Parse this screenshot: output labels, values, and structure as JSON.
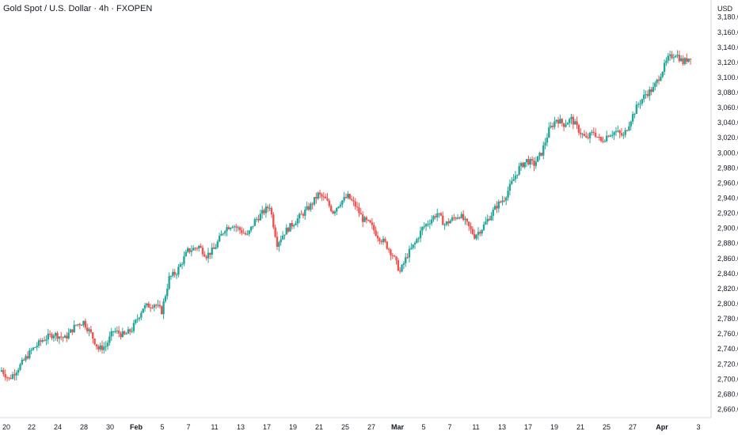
{
  "header": {
    "title": "Gold Spot / U.S. Dollar · 4h · FXOPEN"
  },
  "colors": {
    "up": "#26a69a",
    "down": "#ef5350",
    "axis_text": "#131722",
    "axis_line": "#d1d4dc"
  },
  "chart_data": {
    "type": "candlestick",
    "currency": "USD",
    "ylim": [
      2650,
      3185
    ],
    "y_ticks": [
      "2,660.00",
      "2,680.00",
      "2,700.00",
      "2,720.00",
      "2,740.00",
      "2,760.00",
      "2,780.00",
      "2,800.00",
      "2,820.00",
      "2,840.00",
      "2,860.00",
      "2,880.00",
      "2,900.00",
      "2,920.00",
      "2,940.00",
      "2,960.00",
      "2,980.00",
      "3,000.00",
      "3,020.00",
      "3,040.00",
      "3,060.00",
      "3,080.00",
      "3,100.00",
      "3,120.00",
      "3,140.00",
      "3,160.00",
      "3,180.00"
    ],
    "x_ticks": [
      {
        "label": "20",
        "bold": false
      },
      {
        "label": "22",
        "bold": false
      },
      {
        "label": "24",
        "bold": false
      },
      {
        "label": "28",
        "bold": false
      },
      {
        "label": "30",
        "bold": false
      },
      {
        "label": "Feb",
        "bold": true
      },
      {
        "label": "5",
        "bold": false
      },
      {
        "label": "7",
        "bold": false
      },
      {
        "label": "11",
        "bold": false
      },
      {
        "label": "13",
        "bold": false
      },
      {
        "label": "17",
        "bold": false
      },
      {
        "label": "19",
        "bold": false
      },
      {
        "label": "21",
        "bold": false
      },
      {
        "label": "25",
        "bold": false
      },
      {
        "label": "27",
        "bold": false
      },
      {
        "label": "Mar",
        "bold": true
      },
      {
        "label": "5",
        "bold": false
      },
      {
        "label": "7",
        "bold": false
      },
      {
        "label": "11",
        "bold": false
      },
      {
        "label": "13",
        "bold": false
      },
      {
        "label": "17",
        "bold": false
      },
      {
        "label": "19",
        "bold": false
      },
      {
        "label": "21",
        "bold": false
      },
      {
        "label": "25",
        "bold": false
      },
      {
        "label": "27",
        "bold": false
      },
      {
        "label": "Apr",
        "bold": true
      },
      {
        "label": "3",
        "bold": false
      }
    ],
    "close_path": [
      [
        0,
        2712
      ],
      [
        2,
        2700
      ],
      [
        5,
        2718
      ],
      [
        8,
        2738
      ],
      [
        11,
        2752
      ],
      [
        14,
        2760
      ],
      [
        17,
        2754
      ],
      [
        20,
        2772
      ],
      [
        22,
        2776
      ],
      [
        24,
        2760
      ],
      [
        26,
        2740
      ],
      [
        28,
        2744
      ],
      [
        30,
        2764
      ],
      [
        33,
        2758
      ],
      [
        35,
        2766
      ],
      [
        38,
        2795
      ],
      [
        41,
        2800
      ],
      [
        43,
        2790
      ],
      [
        45,
        2834
      ],
      [
        47,
        2842
      ],
      [
        50,
        2870
      ],
      [
        53,
        2876
      ],
      [
        55,
        2864
      ],
      [
        57,
        2872
      ],
      [
        60,
        2900
      ],
      [
        62,
        2905
      ],
      [
        64,
        2898
      ],
      [
        66,
        2890
      ],
      [
        68,
        2910
      ],
      [
        70,
        2920
      ],
      [
        72,
        2930
      ],
      [
        74,
        2880
      ],
      [
        76,
        2895
      ],
      [
        79,
        2910
      ],
      [
        81,
        2920
      ],
      [
        83,
        2930
      ],
      [
        85,
        2945
      ],
      [
        87,
        2938
      ],
      [
        89,
        2922
      ],
      [
        91,
        2935
      ],
      [
        93,
        2942
      ],
      [
        95,
        2930
      ],
      [
        97,
        2912
      ],
      [
        99,
        2905
      ],
      [
        101,
        2890
      ],
      [
        103,
        2880
      ],
      [
        105,
        2865
      ],
      [
        107,
        2842
      ],
      [
        109,
        2865
      ],
      [
        111,
        2880
      ],
      [
        113,
        2900
      ],
      [
        115,
        2910
      ],
      [
        117,
        2920
      ],
      [
        119,
        2905
      ],
      [
        121,
        2912
      ],
      [
        123,
        2918
      ],
      [
        125,
        2905
      ],
      [
        127,
        2890
      ],
      [
        129,
        2900
      ],
      [
        131,
        2915
      ],
      [
        133,
        2930
      ],
      [
        135,
        2940
      ],
      [
        137,
        2960
      ],
      [
        139,
        2980
      ],
      [
        141,
        2990
      ],
      [
        143,
        2985
      ],
      [
        145,
        3000
      ],
      [
        147,
        3030
      ],
      [
        149,
        3045
      ],
      [
        151,
        3038
      ],
      [
        153,
        3045
      ],
      [
        155,
        3030
      ],
      [
        157,
        3018
      ],
      [
        159,
        3028
      ],
      [
        161,
        3015
      ],
      [
        163,
        3025
      ],
      [
        165,
        3028
      ],
      [
        167,
        3022
      ],
      [
        169,
        3045
      ],
      [
        171,
        3065
      ],
      [
        173,
        3078
      ],
      [
        175,
        3085
      ],
      [
        177,
        3105
      ],
      [
        179,
        3125
      ],
      [
        181,
        3132
      ],
      [
        183,
        3120
      ],
      [
        185,
        3128
      ]
    ]
  }
}
